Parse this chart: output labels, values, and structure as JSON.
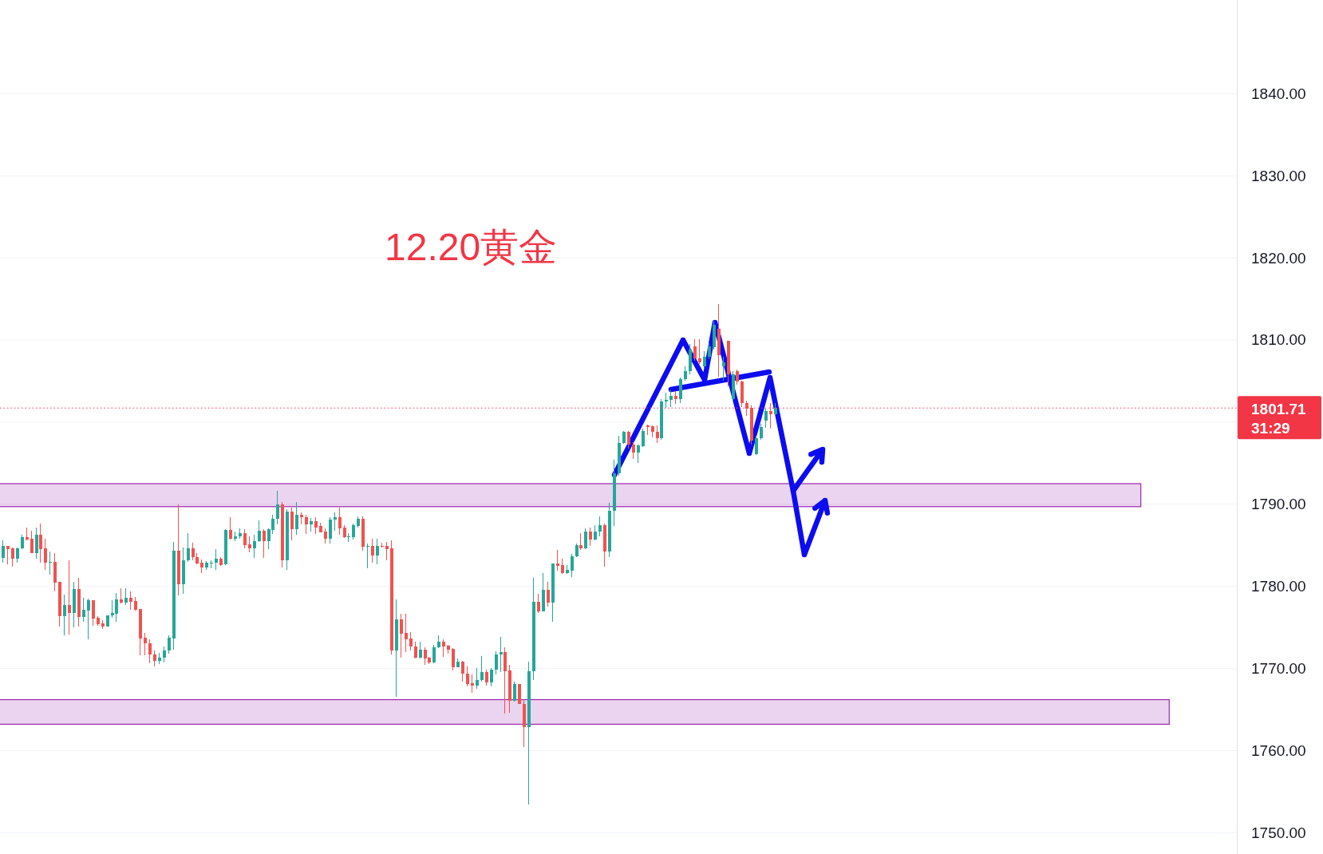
{
  "chart_data": {
    "type": "candlestick",
    "title": "12.20黄金",
    "categories": [
      null,
      null,
      null,
      null,
      null,
      null,
      null,
      null,
      null,
      null,
      null,
      null,
      null,
      null,
      null,
      null,
      null,
      null,
      null,
      null,
      null,
      null,
      null,
      null,
      null,
      null,
      null,
      null,
      null,
      null,
      null,
      null,
      null,
      null,
      null,
      null,
      null,
      null,
      null,
      null,
      null,
      null,
      null,
      null,
      null,
      null,
      null,
      null,
      null,
      null,
      null,
      null,
      null,
      null,
      null,
      null,
      null,
      null,
      null,
      null,
      null,
      null,
      null,
      null,
      null,
      null,
      null,
      null,
      null,
      null,
      null,
      null,
      null,
      null,
      null,
      null,
      null,
      null,
      null,
      null,
      null,
      null,
      null,
      null,
      null,
      null,
      null,
      null,
      null,
      null,
      null,
      null,
      null,
      null,
      null,
      null,
      null,
      null,
      null,
      null,
      null,
      null,
      null,
      null,
      null,
      null,
      null,
      null,
      null,
      null,
      null,
      null,
      null,
      null,
      null,
      null,
      null,
      null,
      null,
      null,
      null,
      null,
      null,
      null,
      null,
      null,
      null,
      null,
      null,
      null,
      null,
      null,
      null,
      null,
      null,
      null,
      null,
      null,
      null,
      null,
      null,
      null,
      null,
      null,
      null,
      null,
      null,
      null,
      null,
      null,
      null,
      null,
      null,
      null,
      null,
      null,
      null,
      null,
      null,
      null,
      null,
      null,
      null,
      null,
      null,
      null,
      null,
      null,
      null,
      null,
      null,
      null,
      null,
      null,
      null,
      null,
      null,
      null,
      null,
      null,
      null,
      null,
      null,
      null,
      null,
      null,
      null,
      null,
      null,
      null,
      null,
      null,
      null,
      null,
      null,
      null,
      null,
      null,
      null,
      null,
      null,
      null,
      null,
      null,
      null,
      null,
      null,
      null,
      null,
      null,
      null,
      null,
      null,
      null,
      null,
      null,
      null,
      null,
      null,
      null,
      null,
      null,
      null,
      null,
      null,
      null,
      null,
      null,
      null,
      null,
      null,
      null,
      null,
      null,
      null,
      null,
      null,
      null,
      null,
      null,
      null,
      null,
      null,
      null,
      null,
      null,
      null,
      null,
      null,
      null,
      null,
      null,
      null,
      null,
      null,
      null,
      null,
      null,
      null,
      null,
      null
    ],
    "ohlc": [
      [
        1783.5,
        1785.6,
        1782.9,
        1784.9
      ],
      [
        1784.9,
        1784.9,
        1782.7,
        1784.5
      ],
      [
        1784.6,
        1784.7,
        1782.4,
        1783.4
      ],
      [
        1783.4,
        1784.7,
        1782.9,
        1784.6
      ],
      [
        1784.6,
        1786.3,
        1784.5,
        1786.0
      ],
      [
        1786.0,
        1787.2,
        1785.6,
        1785.7
      ],
      [
        1785.8,
        1786.8,
        1784.0,
        1784.0
      ],
      [
        1784.0,
        1787.2,
        1783.4,
        1786.3
      ],
      [
        1786.3,
        1787.6,
        1782.9,
        1784.5
      ],
      [
        1784.6,
        1785.8,
        1782.0,
        1782.9
      ],
      [
        1782.9,
        1784.2,
        1781.4,
        1783.0
      ],
      [
        1783.0,
        1784.0,
        1779.4,
        1780.4
      ],
      [
        1780.5,
        1780.5,
        1775.1,
        1776.4
      ],
      [
        1776.4,
        1779.0,
        1774.0,
        1777.7
      ],
      [
        1777.7,
        1783.2,
        1774.1,
        1776.8
      ],
      [
        1776.8,
        1780.5,
        1775.0,
        1779.7
      ],
      [
        1779.7,
        1781.0,
        1775.1,
        1776.3
      ],
      [
        1776.3,
        1778.6,
        1775.7,
        1777.1
      ],
      [
        1777.0,
        1778.5,
        1773.5,
        1778.3
      ],
      [
        1778.3,
        1778.3,
        1775.2,
        1776.1
      ],
      [
        1776.2,
        1776.4,
        1775.2,
        1775.4
      ],
      [
        1775.5,
        1775.9,
        1774.8,
        1775.1
      ],
      [
        1775.1,
        1776.5,
        1775.1,
        1776.5
      ],
      [
        1776.5,
        1778.3,
        1776.2,
        1776.8
      ],
      [
        1776.7,
        1779.2,
        1775.7,
        1778.4
      ],
      [
        1778.4,
        1779.8,
        1777.9,
        1778.0
      ],
      [
        1778.0,
        1779.8,
        1777.7,
        1778.6
      ],
      [
        1778.6,
        1779.4,
        1777.1,
        1778.1
      ],
      [
        1778.2,
        1778.7,
        1777.0,
        1777.1
      ],
      [
        1777.2,
        1777.2,
        1771.6,
        1773.6
      ],
      [
        1773.7,
        1774.3,
        1771.6,
        1773.1
      ],
      [
        1773.1,
        1773.5,
        1770.6,
        1771.7
      ],
      [
        1771.7,
        1772.2,
        1770.2,
        1770.9
      ],
      [
        1770.9,
        1771.9,
        1770.5,
        1771.3
      ],
      [
        1771.3,
        1772.7,
        1770.7,
        1772.2
      ],
      [
        1772.2,
        1774.0,
        1771.8,
        1773.7
      ],
      [
        1773.6,
        1785.4,
        1772.3,
        1784.3
      ],
      [
        1784.3,
        1790.0,
        1778.9,
        1780.3
      ],
      [
        1780.3,
        1784.7,
        1779.1,
        1783.2
      ],
      [
        1783.2,
        1786.5,
        1783.0,
        1784.6
      ],
      [
        1784.6,
        1785.3,
        1783.2,
        1783.6
      ],
      [
        1783.6,
        1784.0,
        1782.7,
        1782.8
      ],
      [
        1782.9,
        1783.3,
        1781.6,
        1782.3
      ],
      [
        1782.3,
        1783.1,
        1782.0,
        1782.9
      ],
      [
        1782.8,
        1783.2,
        1782.2,
        1782.9
      ],
      [
        1782.9,
        1784.5,
        1782.0,
        1783.4
      ],
      [
        1783.4,
        1783.6,
        1782.5,
        1782.6
      ],
      [
        1782.7,
        1787.0,
        1782.6,
        1786.9
      ],
      [
        1786.9,
        1788.4,
        1785.7,
        1785.8
      ],
      [
        1785.8,
        1786.7,
        1785.5,
        1786.1
      ],
      [
        1786.1,
        1787.1,
        1785.8,
        1786.5
      ],
      [
        1786.5,
        1787.0,
        1784.6,
        1785.0
      ],
      [
        1785.1,
        1786.1,
        1784.1,
        1784.6
      ],
      [
        1784.6,
        1786.3,
        1783.5,
        1785.5
      ],
      [
        1785.5,
        1788.0,
        1785.4,
        1786.8
      ],
      [
        1786.8,
        1787.0,
        1783.5,
        1785.5
      ],
      [
        1785.5,
        1787.1,
        1784.5,
        1787.0
      ],
      [
        1786.9,
        1788.7,
        1786.4,
        1788.2
      ],
      [
        1788.2,
        1791.6,
        1787.5,
        1790.0
      ],
      [
        1790.0,
        1790.3,
        1782.3,
        1783.2
      ],
      [
        1783.2,
        1789.4,
        1782.0,
        1789.1
      ],
      [
        1789.1,
        1789.6,
        1785.6,
        1787.0
      ],
      [
        1787.0,
        1790.3,
        1786.3,
        1788.7
      ],
      [
        1788.7,
        1789.0,
        1787.5,
        1788.4
      ],
      [
        1788.4,
        1788.7,
        1786.4,
        1787.5
      ],
      [
        1787.5,
        1788.3,
        1786.7,
        1787.9
      ],
      [
        1787.9,
        1788.4,
        1786.4,
        1787.2
      ],
      [
        1787.3,
        1787.7,
        1786.6,
        1786.6
      ],
      [
        1786.7,
        1787.1,
        1785.2,
        1785.8
      ],
      [
        1785.8,
        1788.4,
        1785.2,
        1788.1
      ],
      [
        1788.1,
        1789.0,
        1786.8,
        1788.4
      ],
      [
        1788.4,
        1789.6,
        1786.3,
        1787.1
      ],
      [
        1787.2,
        1787.4,
        1785.9,
        1786.0
      ],
      [
        1786.0,
        1786.5,
        1785.4,
        1786.1
      ],
      [
        1786.0,
        1787.6,
        1785.7,
        1787.4
      ],
      [
        1787.3,
        1788.5,
        1787.2,
        1788.2
      ],
      [
        1788.2,
        1788.5,
        1784.3,
        1784.8
      ],
      [
        1784.8,
        1785.2,
        1782.2,
        1784.9
      ],
      [
        1784.9,
        1785.8,
        1782.9,
        1783.8
      ],
      [
        1783.8,
        1785.8,
        1782.7,
        1784.9
      ],
      [
        1784.9,
        1785.3,
        1784.7,
        1784.8
      ],
      [
        1784.9,
        1785.4,
        1783.2,
        1784.5
      ],
      [
        1784.6,
        1785.6,
        1771.7,
        1772.2
      ],
      [
        1772.2,
        1778.4,
        1766.5,
        1776.0
      ],
      [
        1776.0,
        1776.7,
        1771.3,
        1774.2
      ],
      [
        1774.3,
        1776.7,
        1772.0,
        1773.5
      ],
      [
        1773.6,
        1774.4,
        1772.2,
        1772.7
      ],
      [
        1772.7,
        1773.3,
        1771.2,
        1771.3
      ],
      [
        1771.3,
        1773.3,
        1771.2,
        1772.3
      ],
      [
        1772.3,
        1772.6,
        1770.4,
        1771.2
      ],
      [
        1771.3,
        1771.4,
        1770.5,
        1770.7
      ],
      [
        1770.7,
        1772.9,
        1770.6,
        1772.6
      ],
      [
        1772.6,
        1774.0,
        1772.5,
        1773.3
      ],
      [
        1773.3,
        1773.5,
        1771.4,
        1772.7
      ],
      [
        1772.8,
        1772.9,
        1771.8,
        1772.3
      ],
      [
        1772.4,
        1772.5,
        1769.8,
        1770.1
      ],
      [
        1770.1,
        1771.2,
        1770.1,
        1770.8
      ],
      [
        1770.8,
        1770.9,
        1768.4,
        1769.4
      ],
      [
        1769.4,
        1770.2,
        1767.8,
        1768.1
      ],
      [
        1768.2,
        1769.3,
        1767.0,
        1767.9
      ],
      [
        1767.9,
        1770.0,
        1767.5,
        1768.6
      ],
      [
        1768.6,
        1771.5,
        1768.4,
        1769.6
      ],
      [
        1769.6,
        1769.9,
        1767.9,
        1768.3
      ],
      [
        1768.3,
        1770.0,
        1767.8,
        1769.9
      ],
      [
        1769.9,
        1772.1,
        1769.3,
        1771.7
      ],
      [
        1771.7,
        1773.8,
        1769.6,
        1772.0
      ],
      [
        1772.0,
        1772.6,
        1764.5,
        1769.7
      ],
      [
        1769.8,
        1770.4,
        1764.6,
        1766.1
      ],
      [
        1766.1,
        1768.4,
        1766.0,
        1768.1
      ],
      [
        1768.1,
        1768.1,
        1765.7,
        1765.7
      ],
      [
        1765.7,
        1766.3,
        1760.4,
        1762.9
      ],
      [
        1762.9,
        1770.8,
        1753.4,
        1769.7
      ],
      [
        1769.7,
        1781.0,
        1768.6,
        1778.1
      ],
      [
        1778.1,
        1779.1,
        1776.8,
        1776.9
      ],
      [
        1776.9,
        1781.6,
        1776.9,
        1779.6
      ],
      [
        1779.6,
        1780.5,
        1777.5,
        1778.0
      ],
      [
        1778.0,
        1782.8,
        1775.7,
        1782.8
      ],
      [
        1782.8,
        1784.4,
        1781.9,
        1782.5
      ],
      [
        1782.6,
        1783.4,
        1781.5,
        1781.6
      ],
      [
        1781.6,
        1782.6,
        1781.5,
        1782.0
      ],
      [
        1781.9,
        1783.9,
        1781.1,
        1783.7
      ],
      [
        1783.7,
        1785.2,
        1783.6,
        1785.0
      ],
      [
        1785.0,
        1786.5,
        1784.4,
        1784.6
      ],
      [
        1784.6,
        1787.1,
        1784.5,
        1786.7
      ],
      [
        1786.7,
        1787.2,
        1784.9,
        1785.7
      ],
      [
        1785.7,
        1787.4,
        1785.6,
        1786.7
      ],
      [
        1786.7,
        1788.5,
        1786.1,
        1787.4
      ],
      [
        1787.4,
        1787.6,
        1782.4,
        1784.2
      ],
      [
        1784.2,
        1790.2,
        1783.6,
        1789.2
      ],
      [
        1789.2,
        1795.4,
        1787.3,
        1793.8
      ],
      [
        1793.8,
        1798.3,
        1793.5,
        1797.5
      ],
      [
        1797.5,
        1798.9,
        1797.4,
        1798.8
      ],
      [
        1798.8,
        1798.9,
        1796.8,
        1797.3
      ],
      [
        1797.3,
        1797.6,
        1795.5,
        1796.3
      ],
      [
        1796.3,
        1797.3,
        1795.0,
        1797.2
      ],
      [
        1797.1,
        1799.2,
        1797.0,
        1798.9
      ],
      [
        1799.6,
        1799.7,
        1798.4,
        1799.4
      ],
      [
        1799.5,
        1799.6,
        1798.1,
        1798.8
      ],
      [
        1798.8,
        1799.6,
        1797.5,
        1798.0
      ],
      [
        1798.0,
        1802.8,
        1797.8,
        1802.5
      ],
      [
        1802.5,
        1803.6,
        1801.7,
        1802.7
      ],
      [
        1802.7,
        1803.9,
        1801.8,
        1803.2
      ],
      [
        1803.2,
        1803.8,
        1802.2,
        1802.8
      ],
      [
        1802.8,
        1805.4,
        1802.3,
        1805.2
      ],
      [
        1805.2,
        1806.8,
        1805.0,
        1806.2
      ],
      [
        1806.2,
        1809.5,
        1805.8,
        1808.8
      ],
      [
        1809.2,
        1810.1,
        1807.5,
        1807.8
      ],
      [
        1807.8,
        1810.1,
        1807.1,
        1807.3
      ],
      [
        1806.8,
        1808.6,
        1806.5,
        1808.0
      ],
      [
        1808.0,
        1809.6,
        1807.7,
        1809.2
      ],
      [
        1809.1,
        1812.3,
        1808.8,
        1811.8
      ],
      [
        1811.4,
        1814.4,
        1805.5,
        1808.1
      ],
      [
        1806.8,
        1808.0,
        1805.0,
        1807.3
      ],
      [
        1809.9,
        1809.9,
        1804.4,
        1805.8
      ],
      [
        1802.8,
        1806.2,
        1802.5,
        1805.8
      ],
      [
        1806.2,
        1806.4,
        1804.6,
        1804.9
      ],
      [
        1804.9,
        1805.0,
        1801.8,
        1802.3
      ],
      [
        1802.3,
        1802.6,
        1800.8,
        1801.6
      ],
      [
        1801.7,
        1802.0,
        1797.3,
        1797.7
      ],
      [
        1796.1,
        1798.3,
        1796.0,
        1798.0
      ],
      [
        1798.0,
        1799.8,
        1797.8,
        1799.4
      ],
      [
        1800.2,
        1801.6,
        1799.3,
        1801.3
      ],
      [
        1801.3,
        1802.3,
        1799.2,
        1801.0
      ],
      [
        1801.0,
        1802.3,
        1800.9,
        1801.7
      ],
      null,
      null,
      null,
      null,
      null,
      null,
      null,
      null,
      null,
      null,
      null,
      null,
      null,
      null,
      null,
      null,
      null,
      null,
      null,
      null,
      null,
      null,
      null,
      null,
      null,
      null,
      null,
      null,
      null,
      null,
      null,
      null,
      null,
      null,
      null,
      null,
      null,
      null,
      null,
      null,
      null,
      null,
      null,
      null,
      null,
      null,
      null,
      null,
      null,
      null,
      null,
      null,
      null,
      null,
      null,
      null,
      null,
      null,
      null,
      null,
      null,
      null,
      null,
      null,
      null,
      null,
      null,
      null,
      null,
      null,
      null,
      null,
      null,
      null,
      null,
      null,
      null,
      null,
      null,
      null,
      null,
      null,
      null,
      null,
      null,
      null,
      null,
      null,
      null,
      null,
      null,
      null,
      null,
      null,
      null,
      null,
      null
    ],
    "ylim": [
      1747.4,
      1851.4
    ],
    "yticks": [
      {
        "value": 1750,
        "label": "1750.00"
      },
      {
        "value": 1760,
        "label": "1760.00"
      },
      {
        "value": 1770,
        "label": "1770.00"
      },
      {
        "value": 1780,
        "label": "1780.00"
      },
      {
        "value": 1790,
        "label": "1790.00"
      },
      {
        "value": 1800,
        "label": null
      },
      {
        "value": 1810,
        "label": "1810.00"
      },
      {
        "value": 1820,
        "label": "1820.00"
      },
      {
        "value": 1830,
        "label": "1830.00"
      },
      {
        "value": 1840,
        "label": "1840.00"
      }
    ],
    "grid": "y",
    "tick_labels": "y",
    "ref_lines": [
      {
        "axis": "y",
        "value": 1801.71,
        "label": "1801.71",
        "color": "#f23645",
        "line_style": "dotted"
      }
    ],
    "bands": [
      {
        "axis": "y",
        "from": 1789.7,
        "to": 1792.5,
        "color": "#9c27b0"
      },
      {
        "axis": "y",
        "from": 1763.2,
        "to": 1766.2,
        "color": "#9c27b0"
      }
    ],
    "annotations": [
      "31:29"
    ]
  }
}
